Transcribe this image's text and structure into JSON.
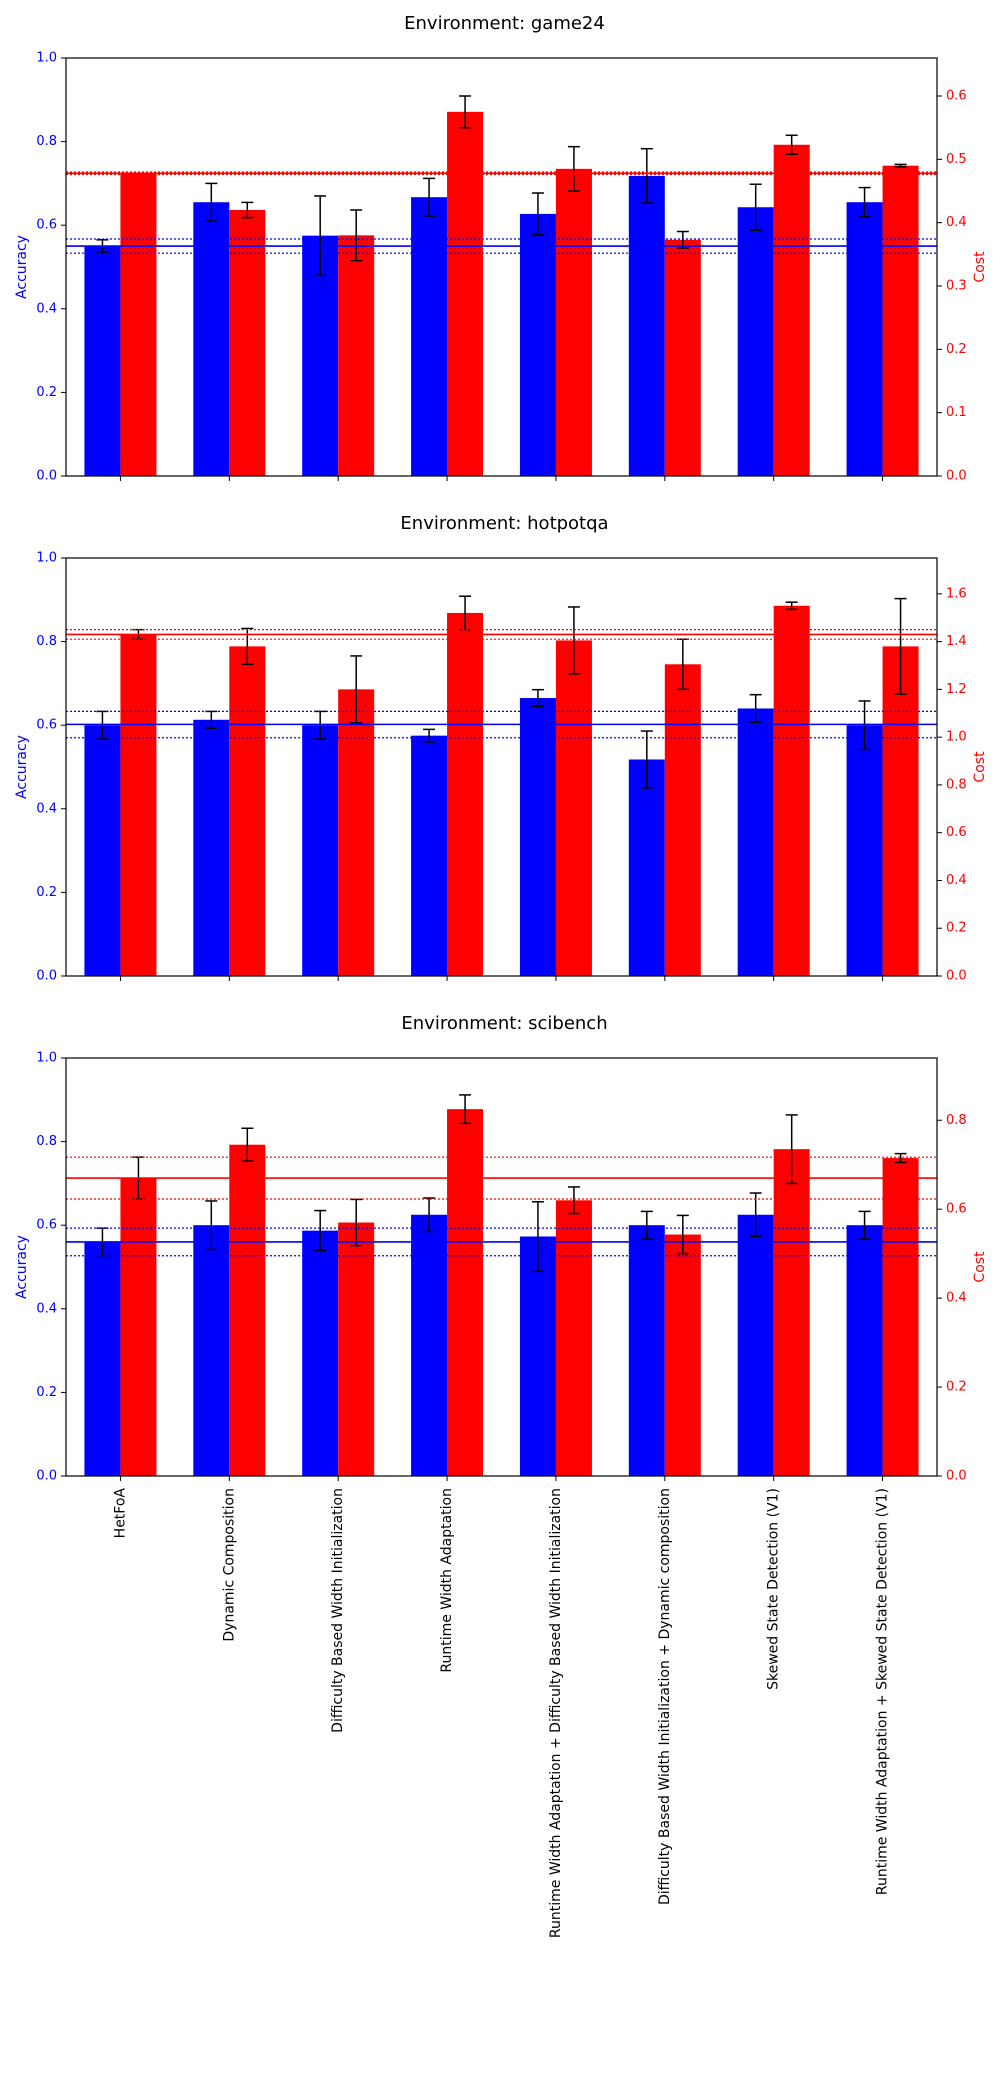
{
  "chart_data": [
    {
      "type": "bar",
      "title": "Environment: game24",
      "ylabel": "Accuracy",
      "y2label": "Cost",
      "ylim": [
        0,
        1.0
      ],
      "y2lim": [
        0,
        0.66
      ],
      "yticks": [
        "0.0",
        "0.2",
        "0.4",
        "0.6",
        "0.8",
        "1.0"
      ],
      "y2ticks": [
        "0.0",
        "0.1",
        "0.2",
        "0.3",
        "0.4",
        "0.5",
        "0.6"
      ],
      "categories": [
        "HetFoA",
        "Dynamic Composition",
        "Difficulty Based Width Initialization",
        "Runtime Width Adaptation",
        "Runtime Width Adaptation + Difficulty Based Width Initialization",
        "Difficulty Based Width Initialization + Dynamic composition",
        "Skewed State Detection (V1)",
        "Runtime Width Adaptation + Skewed State Detection (V1)"
      ],
      "series": [
        {
          "axis": "left",
          "color": "#0000ff",
          "values": [
            0.55,
            0.655,
            0.575,
            0.667,
            0.627,
            0.718,
            0.643,
            0.655
          ],
          "err": [
            0.015,
            0.045,
            0.095,
            0.045,
            0.05,
            0.065,
            0.055,
            0.035
          ]
        },
        {
          "axis": "right",
          "color": "#ff0000",
          "values": [
            0.478,
            0.42,
            0.38,
            0.575,
            0.485,
            0.373,
            0.523,
            0.49
          ],
          "err": [
            0.0,
            0.012,
            0.04,
            0.025,
            0.035,
            0.013,
            0.015,
            0.002
          ]
        }
      ],
      "baseline_acc": {
        "mean": 0.55,
        "lower": 0.533,
        "upper": 0.567
      },
      "baseline_cost": {
        "mean": 0.478,
        "lower": 0.476,
        "upper": 0.48
      }
    },
    {
      "type": "bar",
      "title": "Environment: hotpotqa",
      "ylabel": "Accuracy",
      "y2label": "Cost",
      "ylim": [
        0,
        1.0
      ],
      "y2lim": [
        0,
        1.75
      ],
      "yticks": [
        "0.0",
        "0.2",
        "0.4",
        "0.6",
        "0.8",
        "1.0"
      ],
      "y2ticks": [
        "0.0",
        "0.2",
        "0.4",
        "0.6",
        "0.8",
        "1.0",
        "1.2",
        "1.4",
        "1.6"
      ],
      "categories": [
        "HetFoA",
        "Dynamic Composition",
        "Difficulty Based Width Initialization",
        "Runtime Width Adaptation",
        "Runtime Width Adaptation + Difficulty Based Width Initialization",
        "Difficulty Based Width Initialization + Dynamic composition",
        "Skewed State Detection (V1)",
        "Runtime Width Adaptation + Skewed State Detection (V1)"
      ],
      "series": [
        {
          "axis": "left",
          "color": "#0000ff",
          "values": [
            0.6,
            0.613,
            0.6,
            0.575,
            0.665,
            0.518,
            0.64,
            0.6
          ],
          "err": [
            0.033,
            0.02,
            0.033,
            0.015,
            0.02,
            0.068,
            0.033,
            0.058
          ]
        },
        {
          "axis": "right",
          "color": "#ff0000",
          "values": [
            1.43,
            1.38,
            1.2,
            1.52,
            1.405,
            1.305,
            1.55,
            1.38
          ],
          "err": [
            0.02,
            0.075,
            0.14,
            0.07,
            0.14,
            0.105,
            0.015,
            0.2
          ]
        }
      ],
      "baseline_acc": {
        "mean": 0.602,
        "lower": 0.57,
        "upper": 0.633
      },
      "baseline_cost": {
        "mean": 1.43,
        "lower": 1.41,
        "upper": 1.45
      }
    },
    {
      "type": "bar",
      "title": "Environment: scibench",
      "ylabel": "Accuracy",
      "y2label": "Cost",
      "ylim": [
        0,
        1.0
      ],
      "y2lim": [
        0,
        0.94
      ],
      "yticks": [
        "0.0",
        "0.2",
        "0.4",
        "0.6",
        "0.8",
        "1.0"
      ],
      "y2ticks": [
        "0.0",
        "0.2",
        "0.4",
        "0.6",
        "0.8"
      ],
      "categories": [
        "HetFoA",
        "Dynamic Composition",
        "Difficulty Based Width Initialization",
        "Runtime Width Adaptation",
        "Runtime Width Adaptation + Difficulty Based Width Initialization",
        "Difficulty Based Width Initialization + Dynamic composition",
        "Skewed State Detection (V1)",
        "Runtime Width Adaptation + Skewed State Detection (V1)"
      ],
      "series": [
        {
          "axis": "left",
          "color": "#0000ff",
          "values": [
            0.56,
            0.6,
            0.587,
            0.625,
            0.573,
            0.6,
            0.625,
            0.6
          ],
          "err": [
            0.033,
            0.058,
            0.048,
            0.04,
            0.083,
            0.033,
            0.052,
            0.033
          ]
        },
        {
          "axis": "right",
          "color": "#ff0000",
          "values": [
            0.67,
            0.745,
            0.57,
            0.825,
            0.62,
            0.543,
            0.735,
            0.715
          ],
          "err": [
            0.047,
            0.037,
            0.052,
            0.032,
            0.03,
            0.043,
            0.077,
            0.01
          ]
        }
      ],
      "baseline_acc": {
        "mean": 0.56,
        "lower": 0.527,
        "upper": 0.593
      },
      "baseline_cost": {
        "mean": 0.67,
        "lower": 0.623,
        "upper": 0.717
      }
    }
  ]
}
